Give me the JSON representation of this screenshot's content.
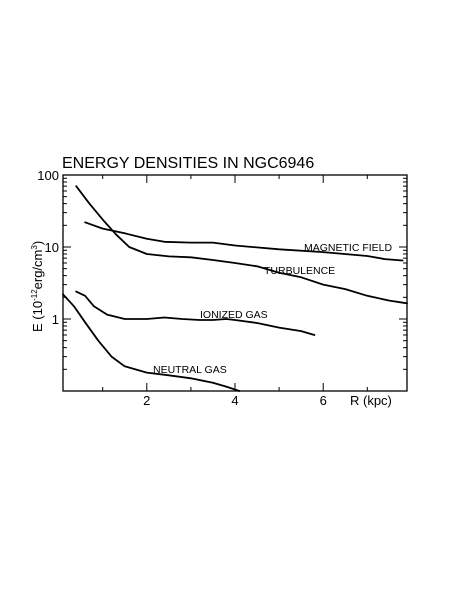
{
  "chart_data": {
    "type": "line",
    "title": "ENERGY DENSITIES IN NGC6946",
    "xlabel": "R (kpc)",
    "ylabel": {
      "prefix": "E (10",
      "exp1": "-12",
      "middle": "erg/cm",
      "exp2": "3",
      "suffix": ")"
    },
    "xlim": [
      0.1,
      7.9
    ],
    "ylim": [
      0.1,
      100
    ],
    "yscale": "log",
    "x_ticks": [
      2,
      4,
      6
    ],
    "y_ticks": [
      1,
      10,
      100
    ],
    "x_tick_labels": [
      "2",
      "4",
      "6"
    ],
    "y_tick_labels": [
      "1",
      "10",
      "100"
    ],
    "series": [
      {
        "name": "MAGNETIC FIELD",
        "x": [
          0.6,
          1.0,
          1.5,
          2.0,
          2.4,
          3.0,
          3.5,
          4.0,
          5.0,
          6.0,
          7.0,
          7.4,
          7.8
        ],
        "y": [
          22,
          18,
          15.5,
          13,
          11.8,
          11.5,
          11.5,
          10.5,
          9.3,
          8.5,
          7.5,
          6.8,
          6.5
        ]
      },
      {
        "name": "TURBULENCE",
        "x": [
          0.4,
          0.7,
          1.0,
          1.3,
          1.6,
          2.0,
          2.5,
          3.0,
          3.5,
          4.0,
          4.5,
          5.0,
          5.5,
          6.0,
          6.5,
          7.0,
          7.5,
          7.9
        ],
        "y": [
          70,
          40,
          24,
          15,
          10,
          8,
          7.4,
          7.2,
          6.6,
          6.0,
          5.4,
          4.4,
          3.8,
          3.0,
          2.6,
          2.1,
          1.8,
          1.65
        ]
      },
      {
        "name": "IONIZED GAS",
        "x": [
          0.4,
          0.6,
          0.8,
          1.1,
          1.5,
          2.0,
          2.4,
          2.8,
          3.2,
          3.5,
          3.8,
          4.0,
          4.5,
          5.0,
          5.5,
          5.8
        ],
        "y": [
          2.4,
          2.1,
          1.5,
          1.15,
          1.0,
          1.0,
          1.05,
          1.0,
          0.97,
          0.97,
          1.0,
          0.97,
          0.88,
          0.76,
          0.68,
          0.6
        ]
      },
      {
        "name": "NEUTRAL GAS",
        "x": [
          0.1,
          0.35,
          0.6,
          0.9,
          1.2,
          1.5,
          2.0,
          2.5,
          3.0,
          3.5,
          3.8,
          4.1
        ],
        "y": [
          2.2,
          1.5,
          0.9,
          0.5,
          0.3,
          0.22,
          0.18,
          0.165,
          0.15,
          0.13,
          0.115,
          0.1
        ]
      }
    ]
  }
}
